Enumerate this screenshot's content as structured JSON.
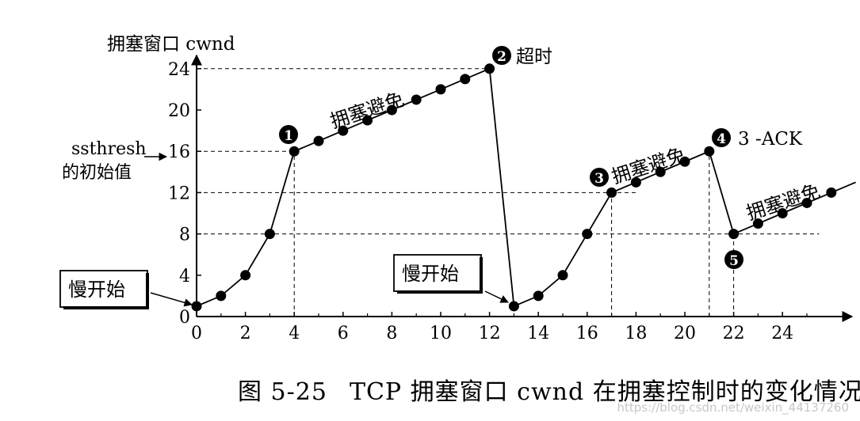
{
  "chart_data": {
    "type": "line",
    "ylabel": "拥塞窗口 cwnd",
    "xlim": [
      0,
      27
    ],
    "ylim": [
      0,
      26
    ],
    "xticks": [
      0,
      2,
      4,
      6,
      8,
      10,
      12,
      14,
      16,
      18,
      20,
      22,
      24
    ],
    "yticks": [
      0,
      4,
      8,
      12,
      16,
      20,
      24
    ],
    "series": [
      {
        "x": [
          0,
          1,
          2,
          3,
          4,
          5,
          6,
          7,
          8,
          9,
          10,
          11,
          12
        ],
        "y": [
          1,
          2,
          4,
          8,
          16,
          17,
          18,
          19,
          20,
          21,
          22,
          23,
          24
        ]
      },
      {
        "x": [
          12,
          13
        ],
        "y": [
          24,
          1
        ]
      },
      {
        "x": [
          13,
          14,
          15,
          16,
          17,
          18,
          19,
          20,
          21
        ],
        "y": [
          1,
          2,
          4,
          8,
          12,
          13,
          14,
          15,
          16
        ]
      },
      {
        "x": [
          21,
          22
        ],
        "y": [
          16,
          8
        ]
      },
      {
        "x": [
          22,
          23,
          24,
          25,
          26,
          27
        ],
        "y": [
          8,
          9,
          10,
          11,
          12,
          13
        ]
      }
    ],
    "annotations": {
      "ssthresh_line1": "ssthresh",
      "ssthresh_line2": "的初始值",
      "slow_start_1": "慢开始",
      "slow_start_2": "慢开始",
      "ca_1": "拥塞避免",
      "ca_2": "拥塞避免",
      "ca_3": "拥塞避免",
      "timeout": "超时",
      "three_ack": "3 -ACK",
      "m1": "1",
      "m2": "2",
      "m3": "3",
      "m4": "4",
      "m5": "5"
    }
  },
  "caption": {
    "fig": "图 5-25",
    "text": "TCP 拥塞窗口 cwnd 在拥塞控制时的变化情况"
  },
  "watermark": "https://blog.csdn.net/weixin_44137260"
}
